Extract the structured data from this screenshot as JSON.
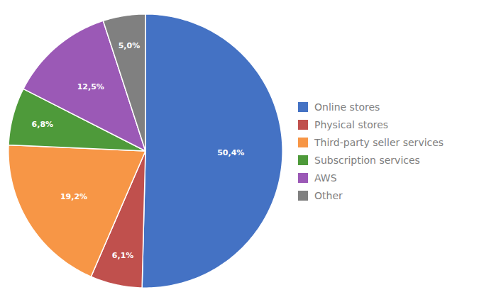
{
  "chart_data": {
    "type": "pie",
    "categories": [
      "Online stores",
      "Physical stores",
      "Third-party seller services",
      "Subscription services",
      "AWS",
      "Other"
    ],
    "values": [
      50.4,
      6.1,
      19.2,
      6.8,
      12.5,
      5.0
    ],
    "value_labels": [
      "50,4%",
      "6,1%",
      "19,2%",
      "6,8%",
      "12,5%",
      "5,0%"
    ],
    "colors": [
      "#4472C4",
      "#C0504D",
      "#F79646",
      "#4E9A3A",
      "#9B59B6",
      "#808080"
    ],
    "data_labels": true,
    "legend": "right"
  }
}
